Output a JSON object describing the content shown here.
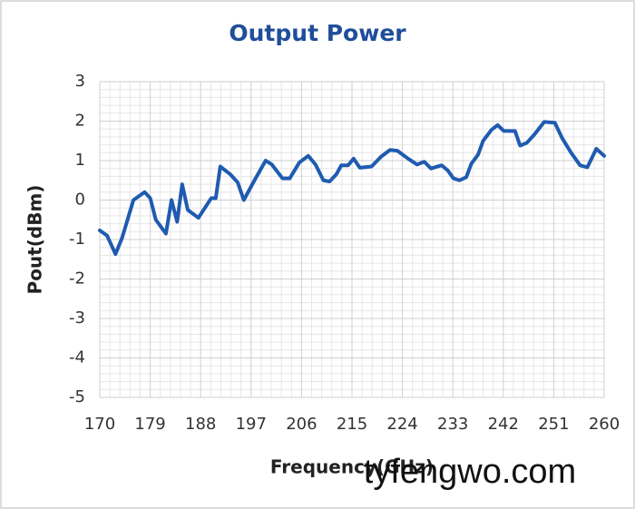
{
  "chart_data": {
    "type": "line",
    "title": "Output Power",
    "x_label": "Frequency(GHz)",
    "y_label": "Pout(dBm)",
    "watermark": "tyfengwo.com",
    "xlim": [
      170,
      260
    ],
    "xticks": [
      170,
      179,
      188,
      197,
      206,
      215,
      224,
      233,
      242,
      251,
      260
    ],
    "ylim": [
      -5,
      3
    ],
    "yticks": [
      -5,
      -4,
      -3,
      -2,
      -1,
      0,
      1,
      2,
      3
    ],
    "grid": true,
    "series": [
      {
        "color": "#1f5bb0",
        "x": [
          170,
          171.3,
          172.8,
          174,
          176,
          178,
          179,
          180,
          181.8,
          182.8,
          183.8,
          184.7,
          185.7,
          187.6,
          189.9,
          190.7,
          191.5,
          193.3,
          194.6,
          195.7,
          197.6,
          199.6,
          200.7,
          202.6,
          203.9,
          205.6,
          207.2,
          208.5,
          209.9,
          211,
          212.2,
          213.1,
          214.3,
          215.3,
          216.4,
          218.5,
          220.2,
          221.8,
          223.1,
          225,
          226.6,
          227.9,
          229.1,
          231,
          232.1,
          233.1,
          234.2,
          235.4,
          236.3,
          237.5,
          238.4,
          239.9,
          241,
          242.1,
          244.1,
          245,
          246.2,
          247.6,
          249.3,
          251.2,
          252.5,
          254.1,
          255.7,
          257,
          258.6,
          260
        ],
        "values": [
          -0.77,
          -0.9,
          -1.37,
          -0.95,
          0,
          0.2,
          0.05,
          -0.5,
          -0.85,
          0,
          -0.55,
          0.4,
          -0.25,
          -0.45,
          0.05,
          0.05,
          0.85,
          0.65,
          0.45,
          0,
          0.5,
          1.0,
          0.9,
          0.55,
          0.55,
          0.95,
          1.12,
          0.9,
          0.5,
          0.47,
          0.65,
          0.88,
          0.88,
          1.05,
          0.82,
          0.85,
          1.1,
          1.27,
          1.25,
          1.05,
          0.9,
          0.97,
          0.8,
          0.88,
          0.75,
          0.55,
          0.5,
          0.58,
          0.92,
          1.15,
          1.5,
          1.78,
          1.9,
          1.75,
          1.75,
          1.38,
          1.45,
          1.67,
          1.98,
          1.96,
          1.57,
          1.2,
          0.88,
          0.83,
          1.3,
          1.12
        ]
      }
    ]
  }
}
